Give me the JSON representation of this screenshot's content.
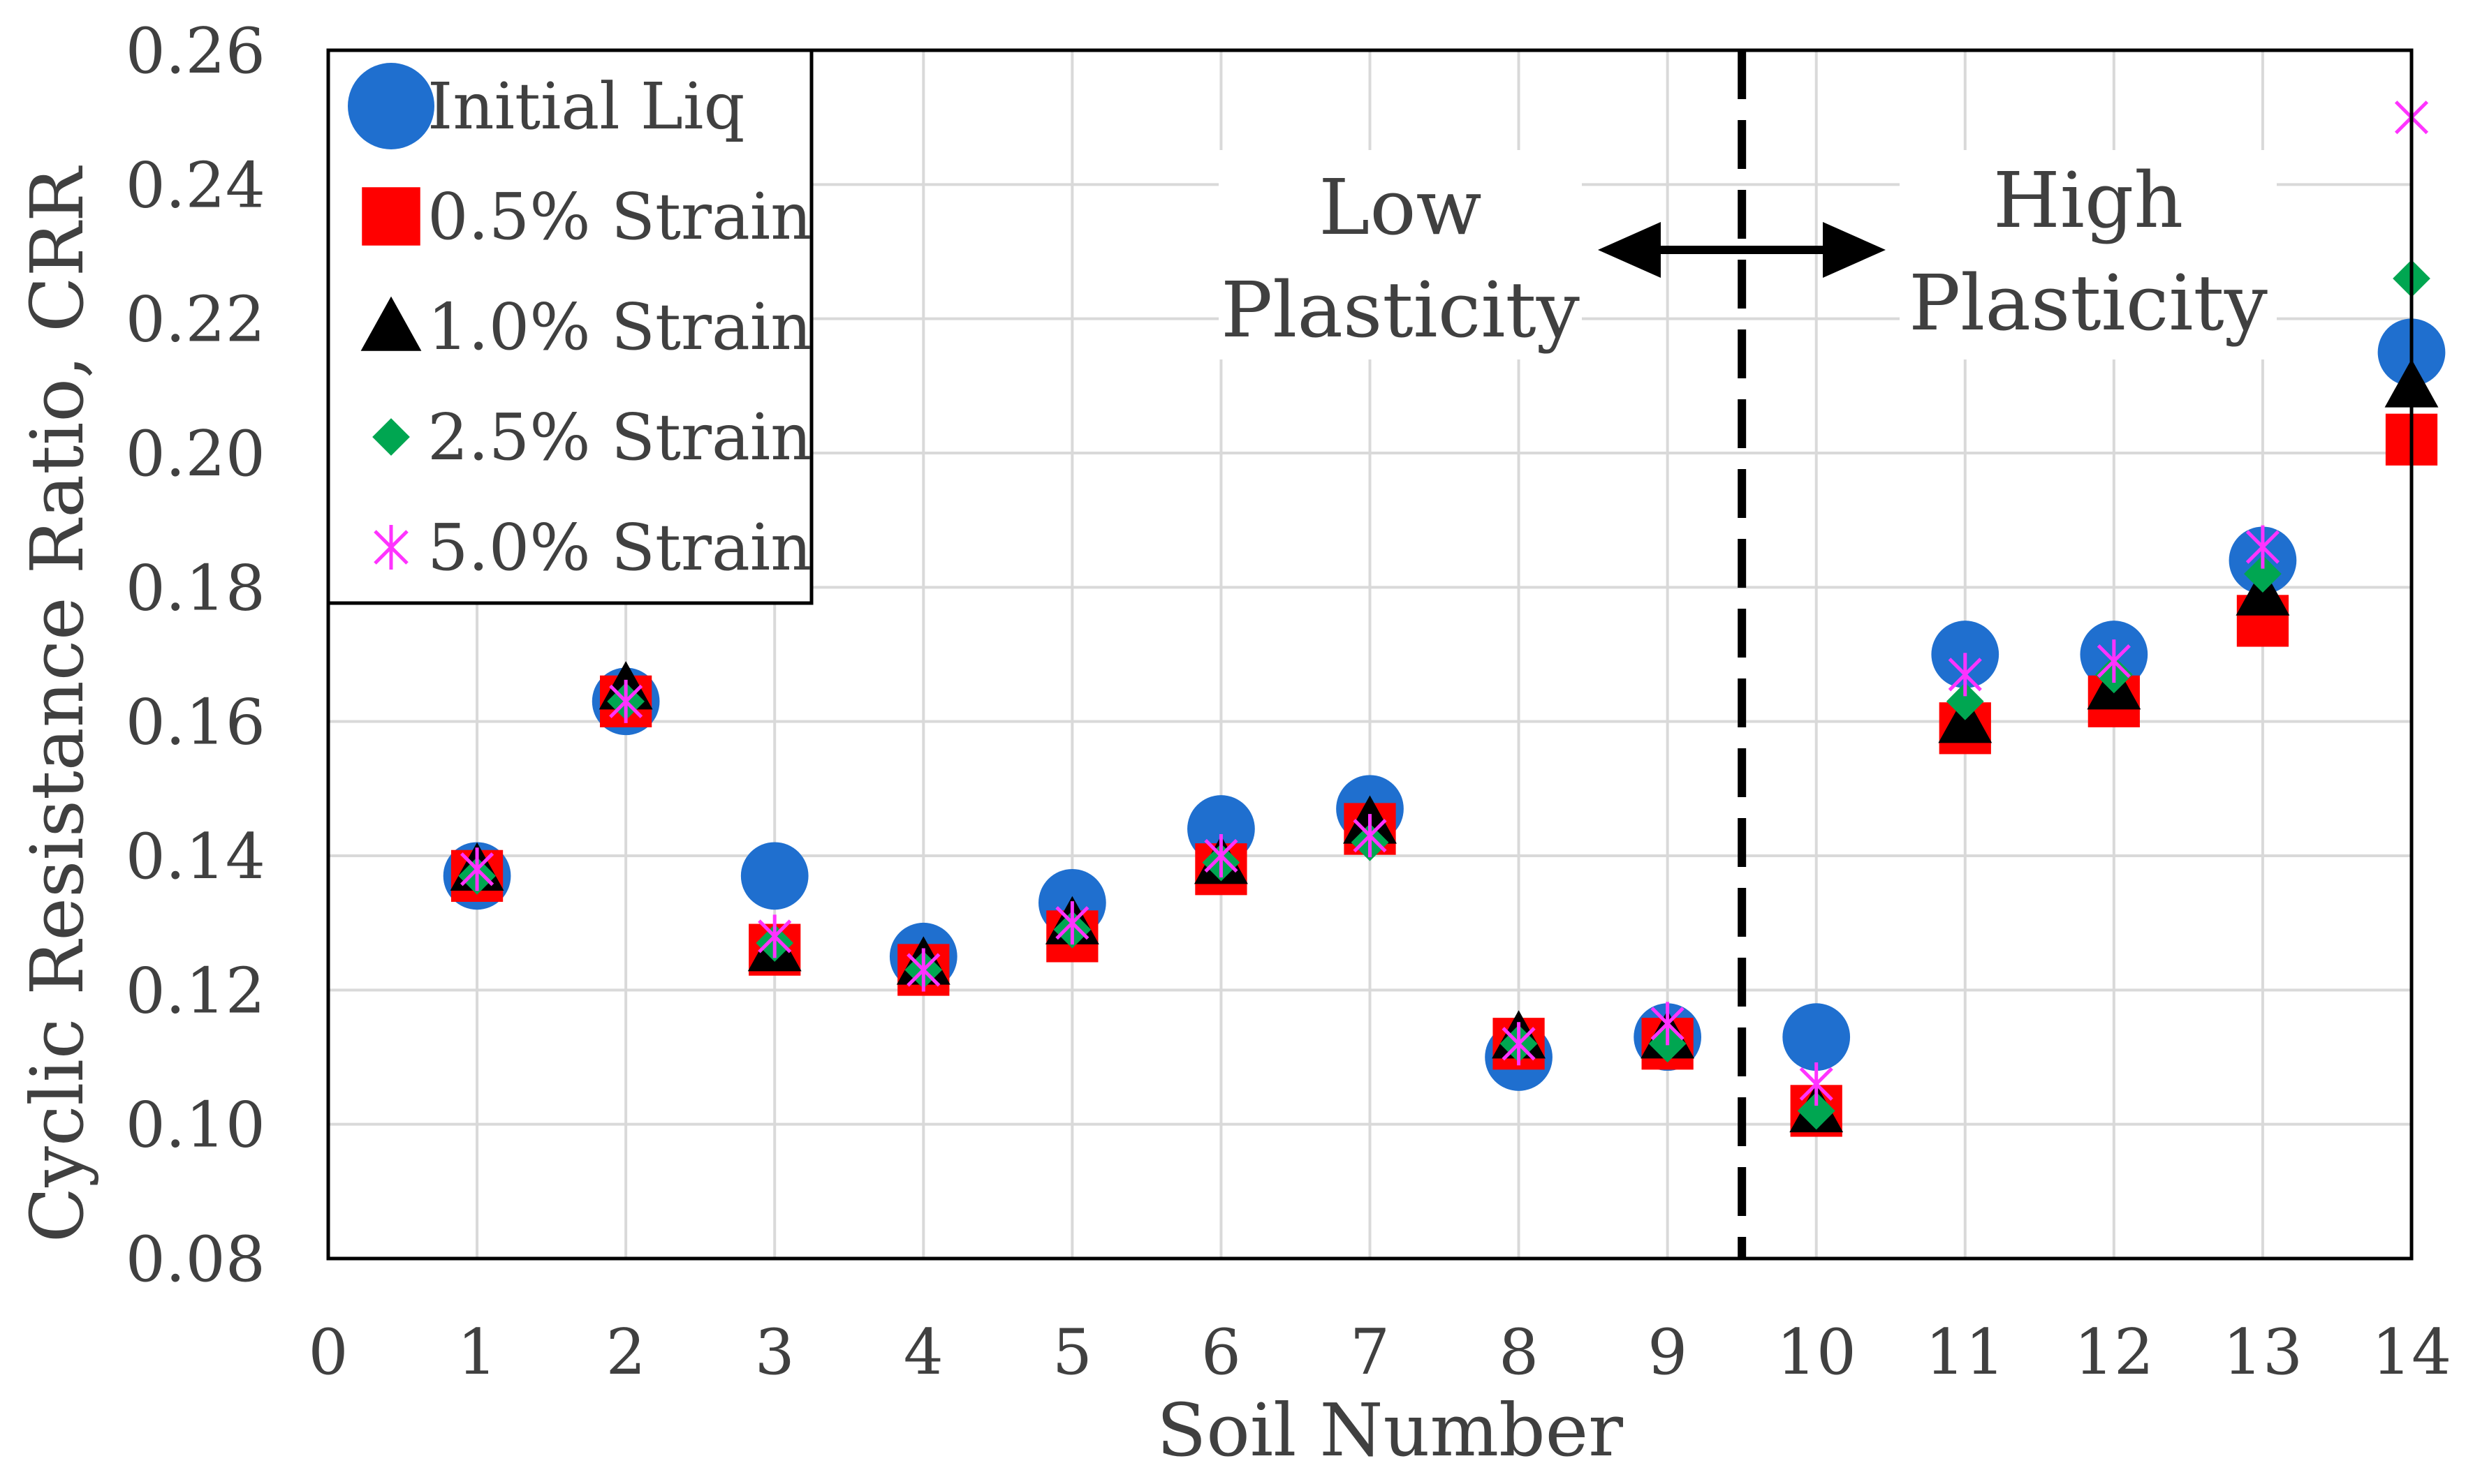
{
  "chart_data": {
    "type": "scatter",
    "title": "",
    "xlabel": "Soil Number",
    "ylabel": "Cyclic Resistance Ratio, CRR",
    "xlim": [
      0,
      14
    ],
    "ylim": [
      0.08,
      0.26
    ],
    "xticks": [
      0,
      1,
      2,
      3,
      4,
      5,
      6,
      7,
      8,
      9,
      10,
      11,
      12,
      13,
      14
    ],
    "yticks": [
      0.08,
      0.1,
      0.12,
      0.14,
      0.16,
      0.18,
      0.2,
      0.22,
      0.24,
      0.26
    ],
    "ytick_labels": [
      "0.08",
      "0.10",
      "0.12",
      "0.14",
      "0.16",
      "0.18",
      "0.20",
      "0.22",
      "0.24",
      "0.26"
    ],
    "grid": true,
    "legend_position": "top-left",
    "x": [
      1,
      2,
      3,
      4,
      5,
      6,
      7,
      8,
      9,
      10,
      11,
      12,
      13,
      14
    ],
    "series": [
      {
        "name": "Initial Liq",
        "marker": "circle",
        "color": "#1f6fcf",
        "values": [
          0.137,
          0.163,
          0.137,
          0.125,
          0.133,
          0.144,
          0.147,
          0.11,
          0.113,
          0.113,
          0.17,
          0.17,
          0.184,
          0.215
        ]
      },
      {
        "name": "0.5% Strain",
        "marker": "square",
        "color": "#ff0000",
        "values": [
          0.137,
          0.163,
          0.126,
          0.123,
          0.128,
          0.138,
          0.144,
          0.112,
          0.112,
          0.102,
          0.159,
          0.163,
          0.175,
          0.202
        ]
      },
      {
        "name": "1.0% Strain",
        "marker": "triangle",
        "color": "#000000",
        "values": [
          0.138,
          0.165,
          0.126,
          0.124,
          0.13,
          0.139,
          0.145,
          0.113,
          0.113,
          0.102,
          0.16,
          0.165,
          0.179,
          0.21
        ]
      },
      {
        "name": "2.5% Strain",
        "marker": "diamond",
        "color": "#00a651",
        "values": [
          0.137,
          0.163,
          0.127,
          0.123,
          0.129,
          0.139,
          0.142,
          0.112,
          0.112,
          0.102,
          0.163,
          0.167,
          0.182,
          0.226
        ]
      },
      {
        "name": "5.0% Strain",
        "marker": "asterisk",
        "color": "#ff33ff",
        "values": [
          0.138,
          0.163,
          0.128,
          0.123,
          0.13,
          0.14,
          0.143,
          0.112,
          0.115,
          0.106,
          0.167,
          0.169,
          0.186,
          0.25
        ]
      }
    ],
    "divider_x": 9.5,
    "annotations": {
      "low": [
        "Low",
        "Plasticity"
      ],
      "high": [
        "High",
        "Plasticity"
      ]
    }
  }
}
